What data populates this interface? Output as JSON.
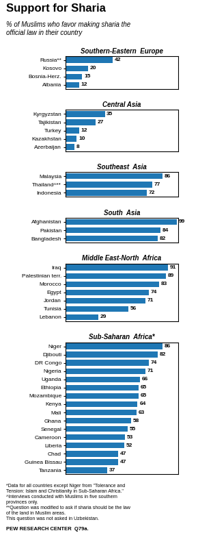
{
  "title": "Support for Sharia",
  "subtitle": "% of Muslims who favor making sharia the\nofficial law in their country",
  "annotations": [
    "*Data for all countries except Niger from \"Tolerance and\nTension: Islam and Christianity in Sub-Saharan Africa.\"\n^Interviews conducted with Muslims in five southern\nprovinces only.\n**Question was modified to ask if sharia should be the law\nof the land in Muslim areas.\nThis question was not asked in Uzbekistan.",
    "PEW RESEARCH CENTER  Q79a."
  ],
  "chart_data": [
    {
      "type": "bar",
      "orientation": "horizontal",
      "title": "Southern-Eastern  Europe",
      "categories": [
        "Russia**",
        "Kosovo",
        "Bosnia-Herz.",
        "Albania"
      ],
      "values": [
        42,
        20,
        15,
        12
      ],
      "xlim": [
        0,
        100
      ],
      "data_labels": true,
      "tick_labels": "y"
    },
    {
      "type": "bar",
      "orientation": "horizontal",
      "title": "Central Asia",
      "categories": [
        "Kyrgyzstan",
        "Tajikistan",
        "Turkey",
        "Kazakhstan",
        "Azerbaijan"
      ],
      "values": [
        35,
        27,
        12,
        10,
        8
      ],
      "xlim": [
        0,
        100
      ],
      "data_labels": true,
      "tick_labels": "y"
    },
    {
      "type": "bar",
      "orientation": "horizontal",
      "title": "Southeast  Asia",
      "categories": [
        "Malaysia",
        "Thailand^**",
        "Indonesia"
      ],
      "values": [
        86,
        77,
        72
      ],
      "xlim": [
        0,
        100
      ],
      "data_labels": true,
      "tick_labels": "y"
    },
    {
      "type": "bar",
      "orientation": "horizontal",
      "title": "South  Asia",
      "categories": [
        "Afghanistan",
        "Pakistan",
        "Bangladesh"
      ],
      "values": [
        99,
        84,
        82
      ],
      "xlim": [
        0,
        100
      ],
      "data_labels": true,
      "tick_labels": "y"
    },
    {
      "type": "bar",
      "orientation": "horizontal",
      "title": "Middle East-North  Africa",
      "categories": [
        "Iraq",
        "Palestinian terr.",
        "Morocco",
        "Egypt",
        "Jordan",
        "Tunisia",
        "Lebanon"
      ],
      "values": [
        91,
        89,
        83,
        74,
        71,
        56,
        29
      ],
      "xlim": [
        0,
        100
      ],
      "data_labels": true,
      "tick_labels": "y"
    },
    {
      "type": "bar",
      "orientation": "horizontal",
      "title": "Sub-Saharan  Africa*",
      "categories": [
        "Niger",
        "Djibouti",
        "DR Congo",
        "Nigeria",
        "Uganda",
        "Ethiopia",
        "Mozambique",
        "Kenya",
        "Mali",
        "Ghana",
        "Senegal",
        "Cameroon",
        "Liberia",
        "Chad",
        "Guinea Bissau",
        "Tanzania"
      ],
      "values": [
        86,
        82,
        74,
        71,
        66,
        65,
        65,
        64,
        63,
        58,
        55,
        53,
        52,
        47,
        47,
        37
      ],
      "xlim": [
        0,
        100
      ],
      "data_labels": true,
      "tick_labels": "y"
    }
  ]
}
